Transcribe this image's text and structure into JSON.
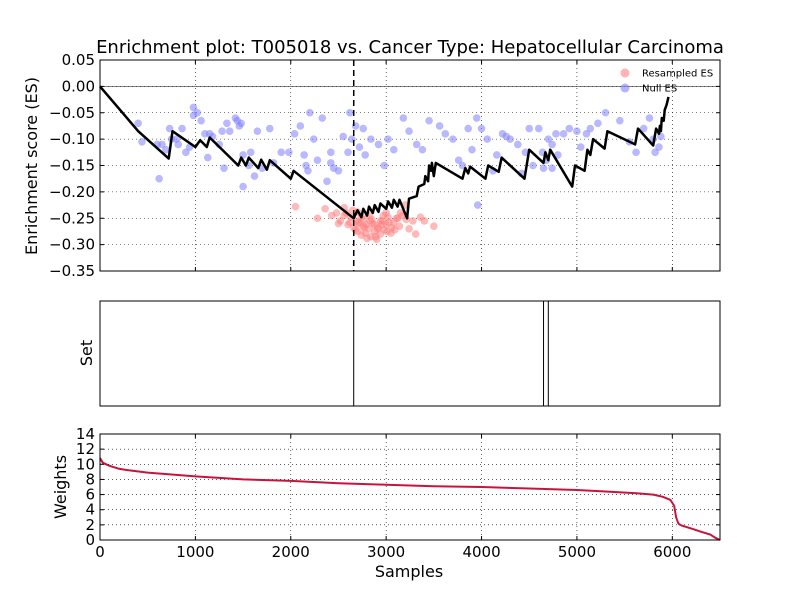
{
  "chart_data": [
    {
      "panel": "enrichment",
      "type": "line+scatter",
      "title": "Enrichment plot: T005018 vs. Cancer Type: Hepatocellular Carcinoma",
      "xlabel": "",
      "ylabel": "Enrichment score (ES)",
      "xlim": [
        0,
        6500
      ],
      "ylim": [
        -0.35,
        0.05
      ],
      "yticks": [
        0.05,
        0.0,
        -0.05,
        -0.1,
        -0.15,
        -0.2,
        -0.25,
        -0.3,
        -0.35
      ],
      "ytick_labels": [
        "0.05",
        "0.00",
        "−0.05",
        "−0.10",
        "−0.15",
        "−0.20",
        "−0.25",
        "−0.30",
        "−0.35"
      ],
      "xticks": [
        0,
        1000,
        2000,
        3000,
        4000,
        5000,
        6000
      ],
      "grid": true,
      "legend_position": "top-right",
      "legend": [
        {
          "label": "Resampled ES",
          "color": "#ff8080"
        },
        {
          "label": "Null ES",
          "color": "#8080ff"
        }
      ],
      "zero_line": 0.0,
      "leading_edge_x": 2660,
      "running_es": {
        "x": [
          0,
          400,
          720,
          760,
          1000,
          1050,
          1120,
          1150,
          1450,
          1480,
          1530,
          1560,
          1660,
          1690,
          1750,
          1780,
          2000,
          2030,
          2660,
          2700,
          2740,
          2760,
          2800,
          2820,
          2860,
          2880,
          2920,
          2940,
          3000,
          3020,
          3060,
          3080,
          3120,
          3140,
          3220,
          3240,
          3320,
          3340,
          3400,
          3410,
          3440,
          3450,
          3470,
          3480,
          3500,
          3520,
          3800,
          3830,
          3860,
          3880,
          4040,
          4070,
          4180,
          4210,
          4450,
          4500,
          4650,
          4670,
          4700,
          4720,
          4950,
          4980,
          5080,
          5110,
          5140,
          5170,
          5290,
          5320,
          5610,
          5640,
          5800,
          5830,
          5860,
          5870,
          5880,
          5890,
          5910,
          5920,
          5940,
          5960
        ],
        "y": [
          0.0,
          -0.085,
          -0.137,
          -0.085,
          -0.115,
          -0.102,
          -0.115,
          -0.097,
          -0.15,
          -0.135,
          -0.15,
          -0.135,
          -0.155,
          -0.139,
          -0.158,
          -0.14,
          -0.175,
          -0.16,
          -0.25,
          -0.235,
          -0.248,
          -0.232,
          -0.245,
          -0.228,
          -0.24,
          -0.225,
          -0.238,
          -0.222,
          -0.232,
          -0.218,
          -0.23,
          -0.215,
          -0.228,
          -0.215,
          -0.25,
          -0.213,
          -0.208,
          -0.19,
          -0.185,
          -0.17,
          -0.18,
          -0.15,
          -0.16,
          -0.145,
          -0.17,
          -0.145,
          -0.175,
          -0.155,
          -0.165,
          -0.152,
          -0.175,
          -0.15,
          -0.162,
          -0.135,
          -0.175,
          -0.12,
          -0.145,
          -0.125,
          -0.14,
          -0.12,
          -0.19,
          -0.15,
          -0.16,
          -0.12,
          -0.13,
          -0.1,
          -0.118,
          -0.085,
          -0.11,
          -0.08,
          -0.112,
          -0.08,
          -0.09,
          -0.075,
          -0.085,
          -0.06,
          -0.065,
          -0.045,
          -0.035,
          -0.02
        ]
      },
      "resampled_es": {
        "x": [
          2050,
          2280,
          2360,
          2430,
          2480,
          2520,
          2560,
          2600,
          2630,
          2660,
          2690,
          2700,
          2720,
          2740,
          2760,
          2780,
          2800,
          2820,
          2840,
          2860,
          2880,
          2900,
          2920,
          2940,
          2960,
          2980,
          3000,
          3020,
          3050,
          3080,
          3110,
          3140,
          3170,
          3200,
          3240,
          3280,
          3310,
          3360,
          3400,
          3500,
          2560,
          2620,
          2680,
          2740,
          2790,
          2850,
          2910,
          2970,
          3030,
          3090,
          3150,
          3210,
          2700,
          2760,
          2820,
          2880,
          2940,
          3000,
          3060,
          3120,
          2650,
          2710,
          2770,
          2830,
          2890,
          2950,
          3010,
          2580,
          2500
        ],
        "y": [
          -0.228,
          -0.25,
          -0.232,
          -0.245,
          -0.24,
          -0.255,
          -0.23,
          -0.262,
          -0.248,
          -0.268,
          -0.255,
          -0.275,
          -0.26,
          -0.282,
          -0.265,
          -0.278,
          -0.288,
          -0.27,
          -0.285,
          -0.26,
          -0.275,
          -0.29,
          -0.268,
          -0.28,
          -0.255,
          -0.272,
          -0.262,
          -0.248,
          -0.278,
          -0.258,
          -0.25,
          -0.265,
          -0.245,
          -0.225,
          -0.27,
          -0.255,
          -0.28,
          -0.248,
          -0.255,
          -0.265,
          -0.245,
          -0.258,
          -0.272,
          -0.248,
          -0.262,
          -0.252,
          -0.27,
          -0.245,
          -0.258,
          -0.272,
          -0.24,
          -0.252,
          -0.238,
          -0.252,
          -0.245,
          -0.262,
          -0.255,
          -0.24,
          -0.268,
          -0.25,
          -0.235,
          -0.258,
          -0.268,
          -0.255,
          -0.285,
          -0.262,
          -0.275,
          -0.24,
          -0.26
        ],
        "color": "#ff8080"
      },
      "null_es": {
        "x": [
          400,
          440,
          600,
          620,
          650,
          690,
          730,
          750,
          800,
          820,
          860,
          900,
          940,
          980,
          1020,
          1060,
          1100,
          1130,
          1180,
          1250,
          1280,
          1300,
          1330,
          1360,
          1420,
          1440,
          1460,
          1480,
          1500,
          1560,
          1580,
          1620,
          1650,
          1700,
          1780,
          1820,
          1900,
          1980,
          2040,
          2100,
          2140,
          2160,
          2180,
          2200,
          2240,
          2280,
          2330,
          2380,
          2420,
          2450,
          2500,
          2550,
          2600,
          2620,
          2640,
          2680,
          2720,
          2760,
          2780,
          2840,
          2920,
          2980,
          3020,
          3080,
          3180,
          3240,
          3320,
          3380,
          3450,
          3560,
          3620,
          3700,
          3760,
          3800,
          3860,
          3900,
          3950,
          4000,
          4060,
          4120,
          4160,
          4220,
          4260,
          4300,
          4380,
          4420,
          4460,
          4500,
          4540,
          4600,
          4640,
          4650,
          4700,
          4740,
          4800,
          4860,
          4920,
          5000,
          5040,
          5100,
          5140,
          5220,
          5300,
          5450,
          5550,
          5620,
          5700,
          5760,
          5800,
          5820,
          5860,
          5880,
          3960,
          4740,
          4680,
          4780,
          1500,
          2420,
          980,
          1150
        ],
        "y": [
          -0.07,
          -0.105,
          -0.11,
          -0.175,
          -0.11,
          -0.12,
          -0.08,
          -0.1,
          -0.1,
          -0.11,
          -0.08,
          -0.125,
          -0.115,
          -0.055,
          -0.05,
          -0.065,
          -0.09,
          -0.135,
          -0.095,
          -0.11,
          -0.085,
          -0.155,
          -0.07,
          -0.085,
          -0.06,
          -0.065,
          -0.075,
          -0.07,
          -0.13,
          -0.15,
          -0.125,
          -0.17,
          -0.085,
          -0.155,
          -0.08,
          -0.145,
          -0.125,
          -0.125,
          -0.09,
          -0.075,
          -0.13,
          -0.15,
          -0.16,
          -0.05,
          -0.1,
          -0.14,
          -0.06,
          -0.18,
          -0.125,
          -0.155,
          -0.16,
          -0.095,
          -0.125,
          -0.05,
          -0.1,
          -0.075,
          -0.115,
          -0.08,
          -0.13,
          -0.1,
          -0.11,
          -0.15,
          -0.1,
          -0.12,
          -0.06,
          -0.085,
          -0.11,
          -0.12,
          -0.065,
          -0.075,
          -0.09,
          -0.1,
          -0.14,
          -0.15,
          -0.08,
          -0.12,
          -0.06,
          -0.08,
          -0.1,
          -0.16,
          -0.13,
          -0.09,
          -0.095,
          -0.1,
          -0.11,
          -0.165,
          -0.125,
          -0.08,
          -0.15,
          -0.08,
          -0.125,
          -0.155,
          -0.1,
          -0.155,
          -0.13,
          -0.09,
          -0.08,
          -0.085,
          -0.115,
          -0.09,
          -0.08,
          -0.07,
          -0.05,
          -0.065,
          -0.105,
          -0.125,
          -0.08,
          -0.06,
          -0.1,
          -0.125,
          -0.115,
          -0.095,
          -0.225,
          -0.11,
          -0.14,
          -0.09,
          -0.19,
          -0.145,
          -0.04,
          -0.09
        ],
        "color": "#8080ff"
      }
    },
    {
      "panel": "set",
      "type": "event-lines",
      "ylabel": "Set",
      "xlim": [
        0,
        6500
      ],
      "members_x": [
        2660,
        4650,
        4700
      ]
    },
    {
      "panel": "weights",
      "type": "line",
      "xlabel": "Samples",
      "ylabel": "Weights",
      "xlim": [
        0,
        6500
      ],
      "ylim": [
        0,
        14
      ],
      "yticks": [
        0,
        2,
        4,
        6,
        8,
        10,
        12,
        14
      ],
      "xticks": [
        0,
        1000,
        2000,
        3000,
        4000,
        5000,
        6000
      ],
      "grid": true,
      "color": "#c8143c",
      "x": [
        0,
        30,
        100,
        200,
        300,
        500,
        800,
        1000,
        1500,
        2000,
        2500,
        3000,
        3500,
        4000,
        4500,
        5000,
        5300,
        5600,
        5800,
        5900,
        5980,
        6020,
        6040,
        6060,
        6070,
        6100,
        6200,
        6300,
        6400,
        6450,
        6500
      ],
      "y": [
        10.8,
        10.2,
        9.8,
        9.4,
        9.2,
        8.9,
        8.6,
        8.4,
        8.0,
        7.8,
        7.5,
        7.3,
        7.1,
        7.0,
        6.8,
        6.6,
        6.4,
        6.2,
        6.0,
        5.7,
        5.3,
        4.5,
        3.0,
        2.3,
        2.1,
        1.9,
        1.5,
        1.1,
        0.7,
        0.3,
        0.0
      ]
    }
  ]
}
